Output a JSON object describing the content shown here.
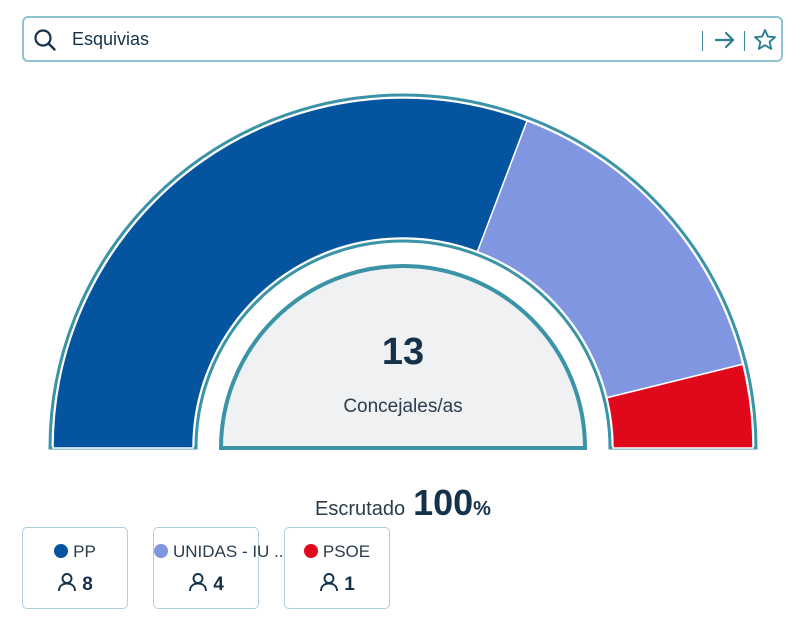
{
  "search": {
    "value": "Esquivias",
    "placeholder": ""
  },
  "chart_data": {
    "type": "pie",
    "style": "hemicycle",
    "total": 13,
    "total_label": "Concejales/as",
    "categories": [
      "PP",
      "UNIDAS - IU ...",
      "PSOE"
    ],
    "values": [
      8,
      4,
      1
    ],
    "colors": [
      "#04549f",
      "#8196e1",
      "#e0091c"
    ]
  },
  "scrutiny": {
    "label": "Escrutado",
    "value": "100",
    "unit": "%"
  },
  "legend": [
    {
      "name": "PP",
      "seats": "8",
      "color": "#04549f"
    },
    {
      "name": "UNIDAS - IU ...",
      "seats": "4",
      "color": "#8196e1"
    },
    {
      "name": "PSOE",
      "seats": "1",
      "color": "#e0091c"
    }
  ]
}
